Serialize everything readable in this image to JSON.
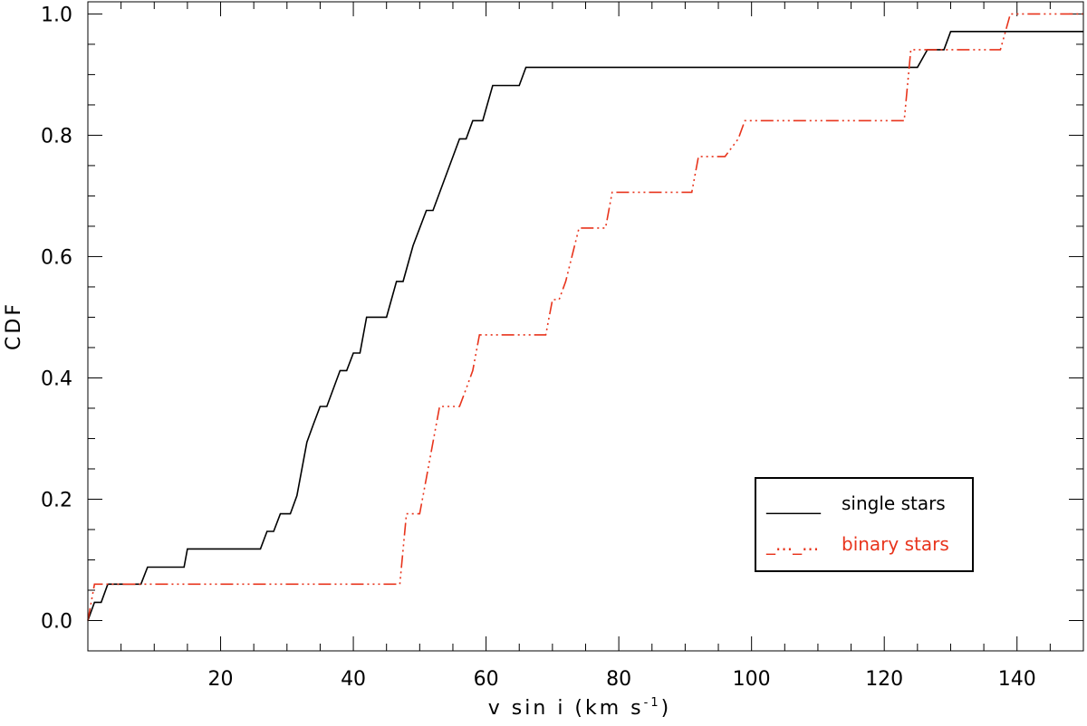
{
  "chart_data": {
    "type": "line",
    "xlabel": "v sin i (km s",
    "xlabel_sup": "-1",
    "xlabel_close": ")",
    "ylabel": "CDF",
    "xlim": [
      0,
      150
    ],
    "ylim": [
      -0.05,
      1.02
    ],
    "x_ticks": [
      20,
      40,
      60,
      80,
      100,
      120,
      140
    ],
    "y_ticks": [
      0.0,
      0.2,
      0.4,
      0.6,
      0.8,
      1.0
    ],
    "x_tick_labels": [
      "20",
      "40",
      "60",
      "80",
      "100",
      "120",
      "140"
    ],
    "y_tick_labels": [
      "0.0",
      "0.2",
      "0.4",
      "0.6",
      "0.8",
      "1.0"
    ],
    "legend": {
      "placement": "lower-right",
      "entries": [
        {
          "sample": "______",
          "label": "single stars",
          "color": "#000000"
        },
        {
          "sample": "_..._...",
          "label": "binary stars",
          "color": "#e8341c"
        }
      ]
    },
    "series": [
      {
        "name": "single stars",
        "color": "#000000",
        "style": "solid",
        "points": [
          [
            0,
            0
          ],
          [
            1,
            0.03
          ],
          [
            2,
            0.03
          ],
          [
            3,
            0.06
          ],
          [
            8,
            0.06
          ],
          [
            9,
            0.088
          ],
          [
            14.5,
            0.088
          ],
          [
            15,
            0.118
          ],
          [
            26,
            0.118
          ],
          [
            27,
            0.147
          ],
          [
            28,
            0.147
          ],
          [
            29,
            0.176
          ],
          [
            30.5,
            0.176
          ],
          [
            31.5,
            0.206
          ],
          [
            33,
            0.294
          ],
          [
            34,
            0.324
          ],
          [
            35,
            0.353
          ],
          [
            36,
            0.353
          ],
          [
            38,
            0.412
          ],
          [
            39,
            0.412
          ],
          [
            40,
            0.441
          ],
          [
            41,
            0.441
          ],
          [
            42,
            0.5
          ],
          [
            45,
            0.5
          ],
          [
            46.5,
            0.559
          ],
          [
            47.5,
            0.559
          ],
          [
            49,
            0.618
          ],
          [
            51,
            0.676
          ],
          [
            52,
            0.676
          ],
          [
            56,
            0.794
          ],
          [
            57,
            0.794
          ],
          [
            58,
            0.824
          ],
          [
            59.5,
            0.824
          ],
          [
            61,
            0.882
          ],
          [
            65,
            0.882
          ],
          [
            66,
            0.912
          ],
          [
            125,
            0.912
          ],
          [
            126.5,
            0.941
          ],
          [
            129,
            0.941
          ],
          [
            130,
            0.971
          ],
          [
            150,
            0.971
          ]
        ]
      },
      {
        "name": "binary stars",
        "color": "#e8341c",
        "style": "dash-dot-dot",
        "points": [
          [
            0,
            0
          ],
          [
            1,
            0.06
          ],
          [
            47,
            0.06
          ],
          [
            48,
            0.176
          ],
          [
            50,
            0.176
          ],
          [
            51,
            0.235
          ],
          [
            52,
            0.294
          ],
          [
            53,
            0.353
          ],
          [
            56,
            0.353
          ],
          [
            57,
            0.382
          ],
          [
            58,
            0.412
          ],
          [
            59,
            0.471
          ],
          [
            69,
            0.471
          ],
          [
            70,
            0.529
          ],
          [
            71,
            0.529
          ],
          [
            72,
            0.559
          ],
          [
            74,
            0.647
          ],
          [
            78,
            0.647
          ],
          [
            79,
            0.706
          ],
          [
            91,
            0.706
          ],
          [
            92,
            0.765
          ],
          [
            96,
            0.765
          ],
          [
            98,
            0.794
          ],
          [
            99,
            0.824
          ],
          [
            123,
            0.824
          ],
          [
            124,
            0.941
          ],
          [
            137.5,
            0.941
          ],
          [
            139,
            1.0
          ],
          [
            150,
            1.0
          ]
        ]
      }
    ]
  }
}
